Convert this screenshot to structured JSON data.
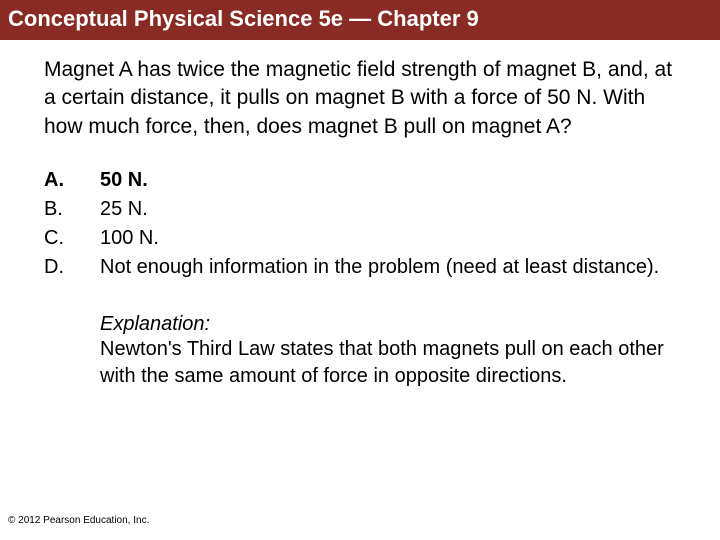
{
  "header": {
    "text": "Conceptual Physical Science 5e — Chapter 9",
    "bg_color": "#8a2a24",
    "text_color": "#ffffff",
    "font_size": 22
  },
  "question": {
    "text": "Magnet A has twice the magnetic field strength of magnet B, and, at a certain distance, it pulls on magnet B with a force of 50 N. With how much force, then, does magnet B pull on magnet A?",
    "font_size": 21,
    "color": "#000000"
  },
  "answers": {
    "font_size": 20,
    "color": "#000000",
    "correct_index": 0,
    "items": [
      {
        "letter": "A.",
        "text": "50 N."
      },
      {
        "letter": "B.",
        "text": "25 N."
      },
      {
        "letter": "C.",
        "text": "100 N."
      },
      {
        "letter": "D.",
        "text": "Not enough information in the problem (need at least distance)."
      }
    ]
  },
  "explanation": {
    "label": "Explanation:",
    "body": "Newton's Third Law states that both magnets pull on each other with the same amount of force in opposite directions.",
    "font_size": 20,
    "color": "#000000"
  },
  "copyright": {
    "text": "© 2012 Pearson Education, Inc.",
    "font_size": 10,
    "color": "#000000"
  }
}
